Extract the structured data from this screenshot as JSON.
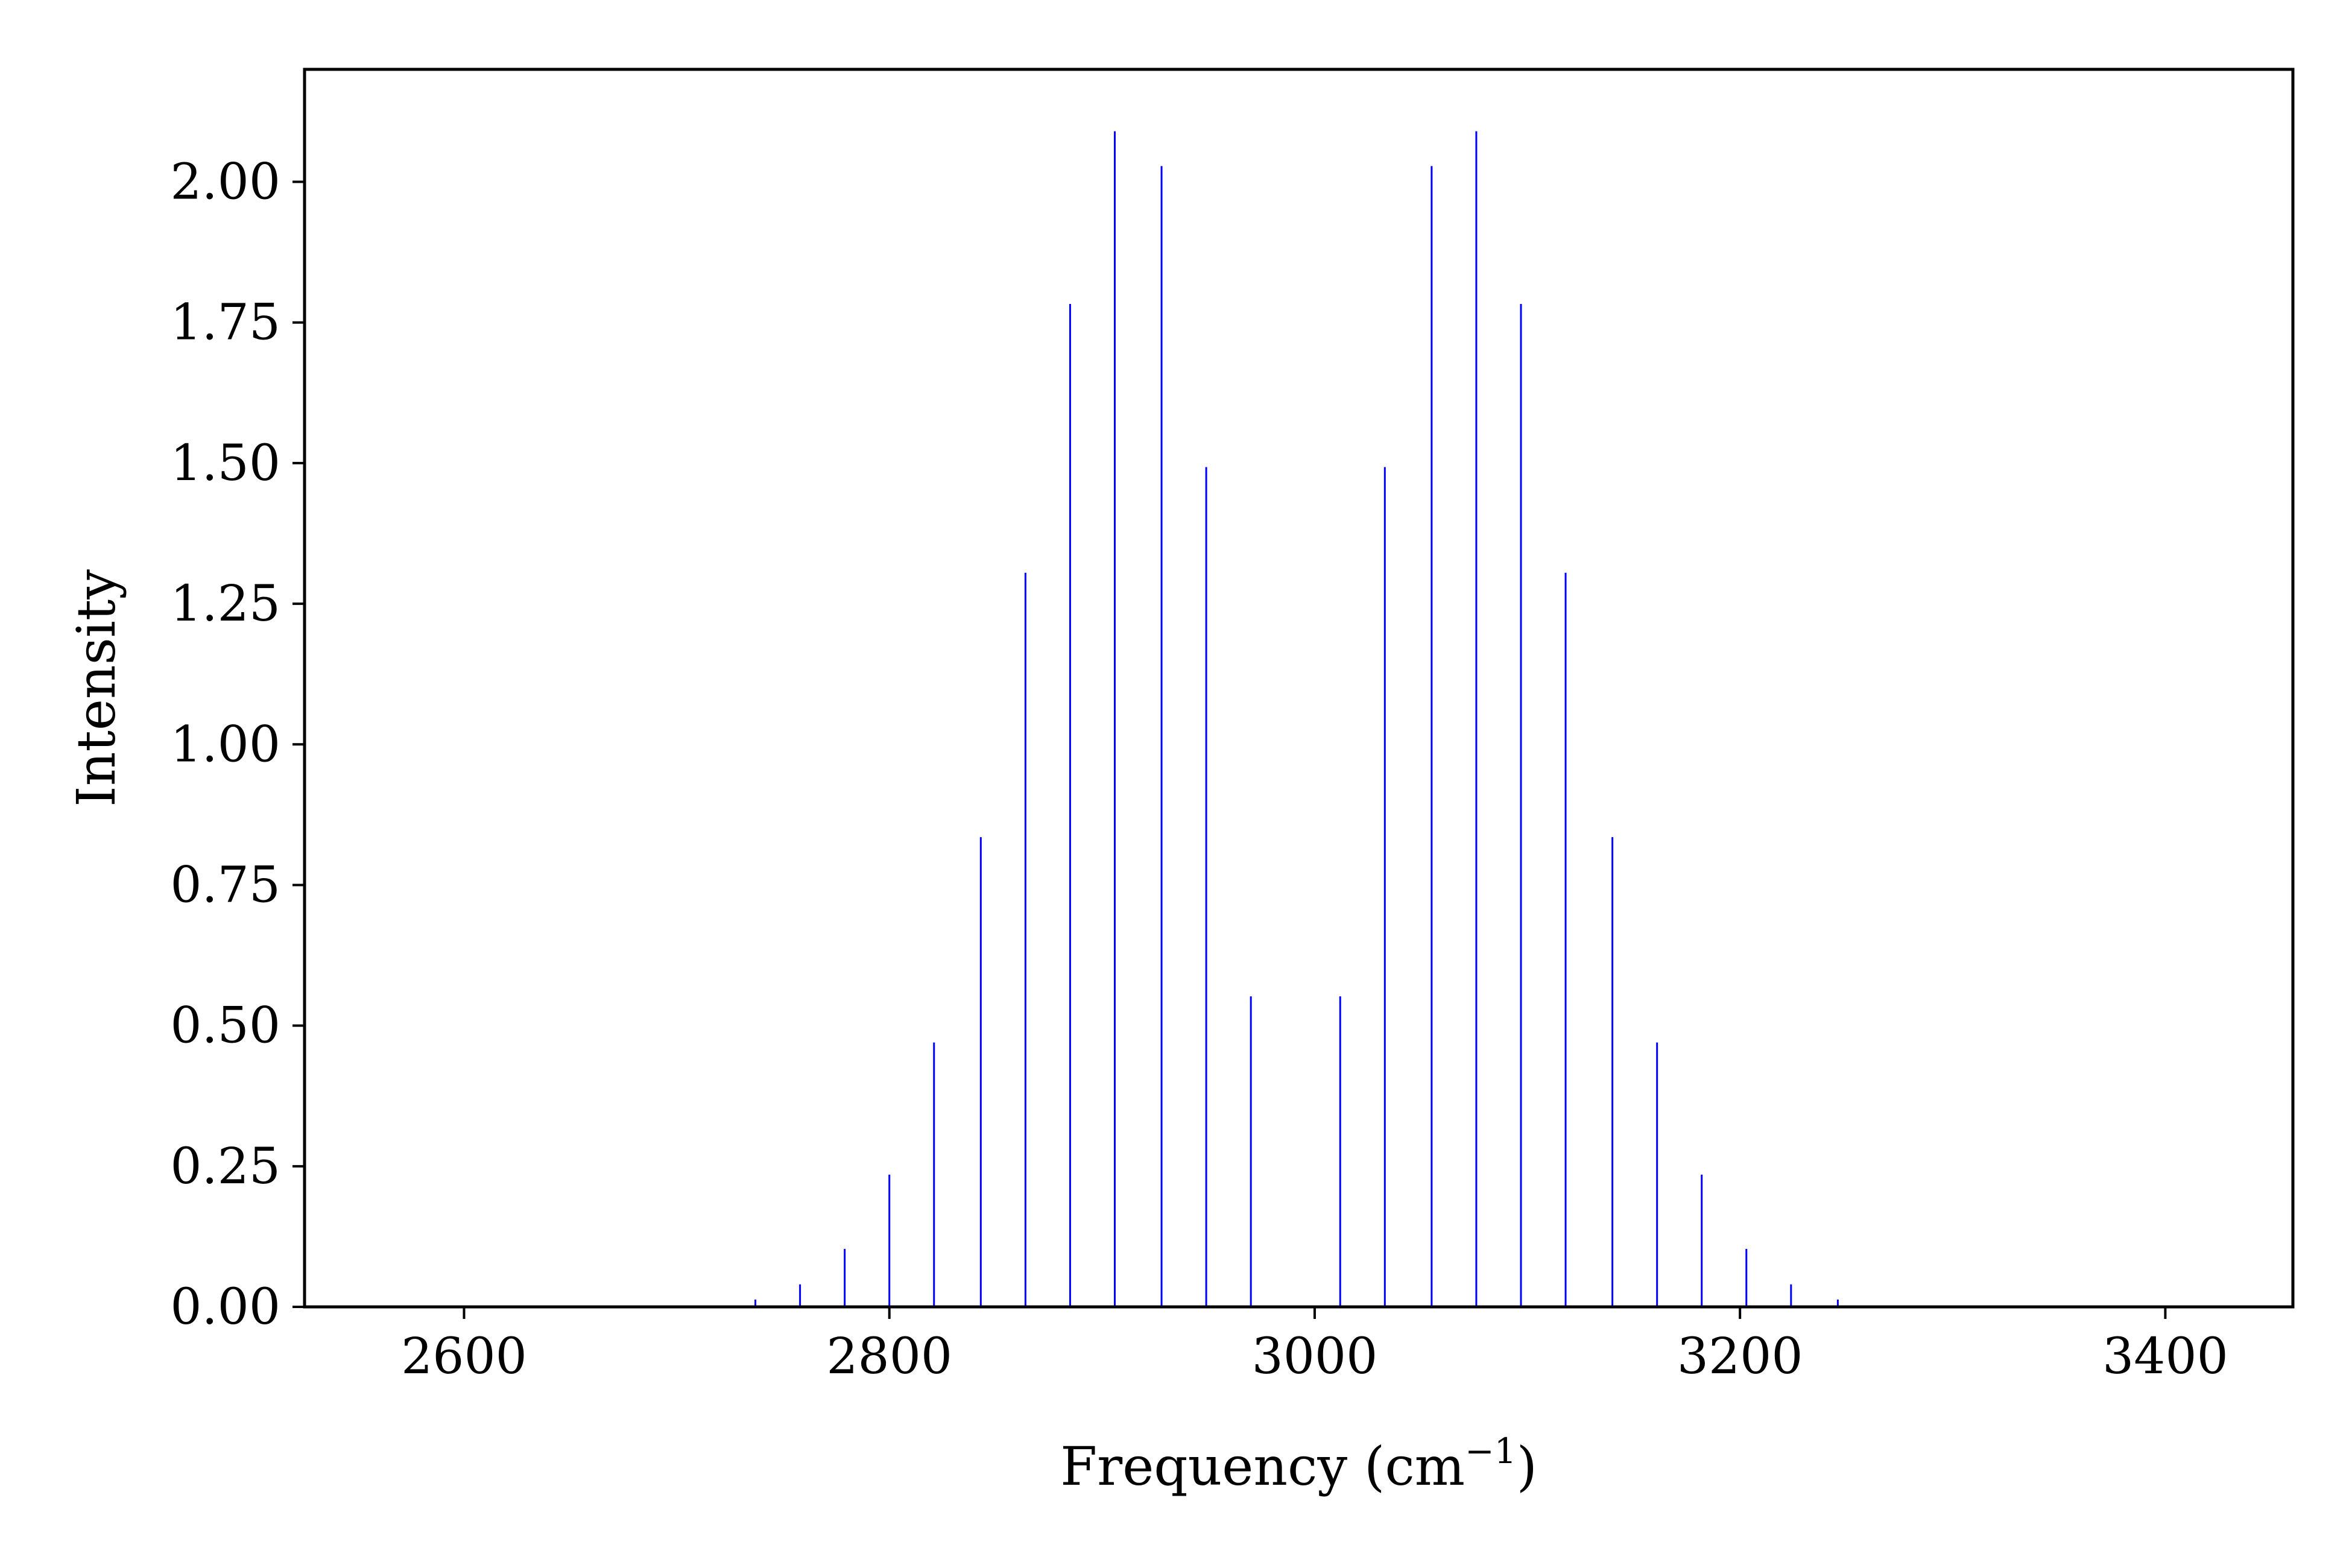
{
  "chart_data": {
    "type": "bar",
    "subtype": "stick-spectrum",
    "title": "",
    "xlabel": "Frequency (cm",
    "xlabel_superscript": "−1",
    "xlabel_suffix": ")",
    "ylabel": "Intensity",
    "xlim": [
      2525,
      3460
    ],
    "ylim": [
      0,
      2.2
    ],
    "xticks": [
      2600,
      2800,
      3000,
      3200,
      3400
    ],
    "xtick_labels": [
      "2600",
      "2800",
      "3000",
      "3200",
      "3400"
    ],
    "yticks": [
      0,
      0.25,
      0.5,
      0.75,
      1.0,
      1.25,
      1.5,
      1.75,
      2.0
    ],
    "ytick_labels": [
      "0.00",
      "0.25",
      "0.50",
      "0.75",
      "1.00",
      "1.25",
      "1.50",
      "1.75",
      "2.00"
    ],
    "grid": false,
    "legend": "none",
    "series": [
      {
        "color": "#0000ff",
        "x": [
          2716,
          2737,
          2758,
          2779,
          2800,
          2821,
          2843,
          2864,
          2885,
          2906,
          2928,
          2949,
          2970,
          3012,
          3033,
          3055,
          3076,
          3097,
          3118,
          3140,
          3161,
          3182,
          3203,
          3224,
          3246,
          3267
        ],
        "values": [
          0.002,
          0.013,
          0.04,
          0.103,
          0.235,
          0.47,
          0.835,
          1.305,
          1.783,
          2.09,
          2.028,
          1.493,
          0.552,
          0.552,
          1.493,
          2.028,
          2.09,
          1.783,
          1.305,
          0.835,
          0.47,
          0.235,
          0.103,
          0.04,
          0.013,
          0.002
        ]
      }
    ]
  }
}
